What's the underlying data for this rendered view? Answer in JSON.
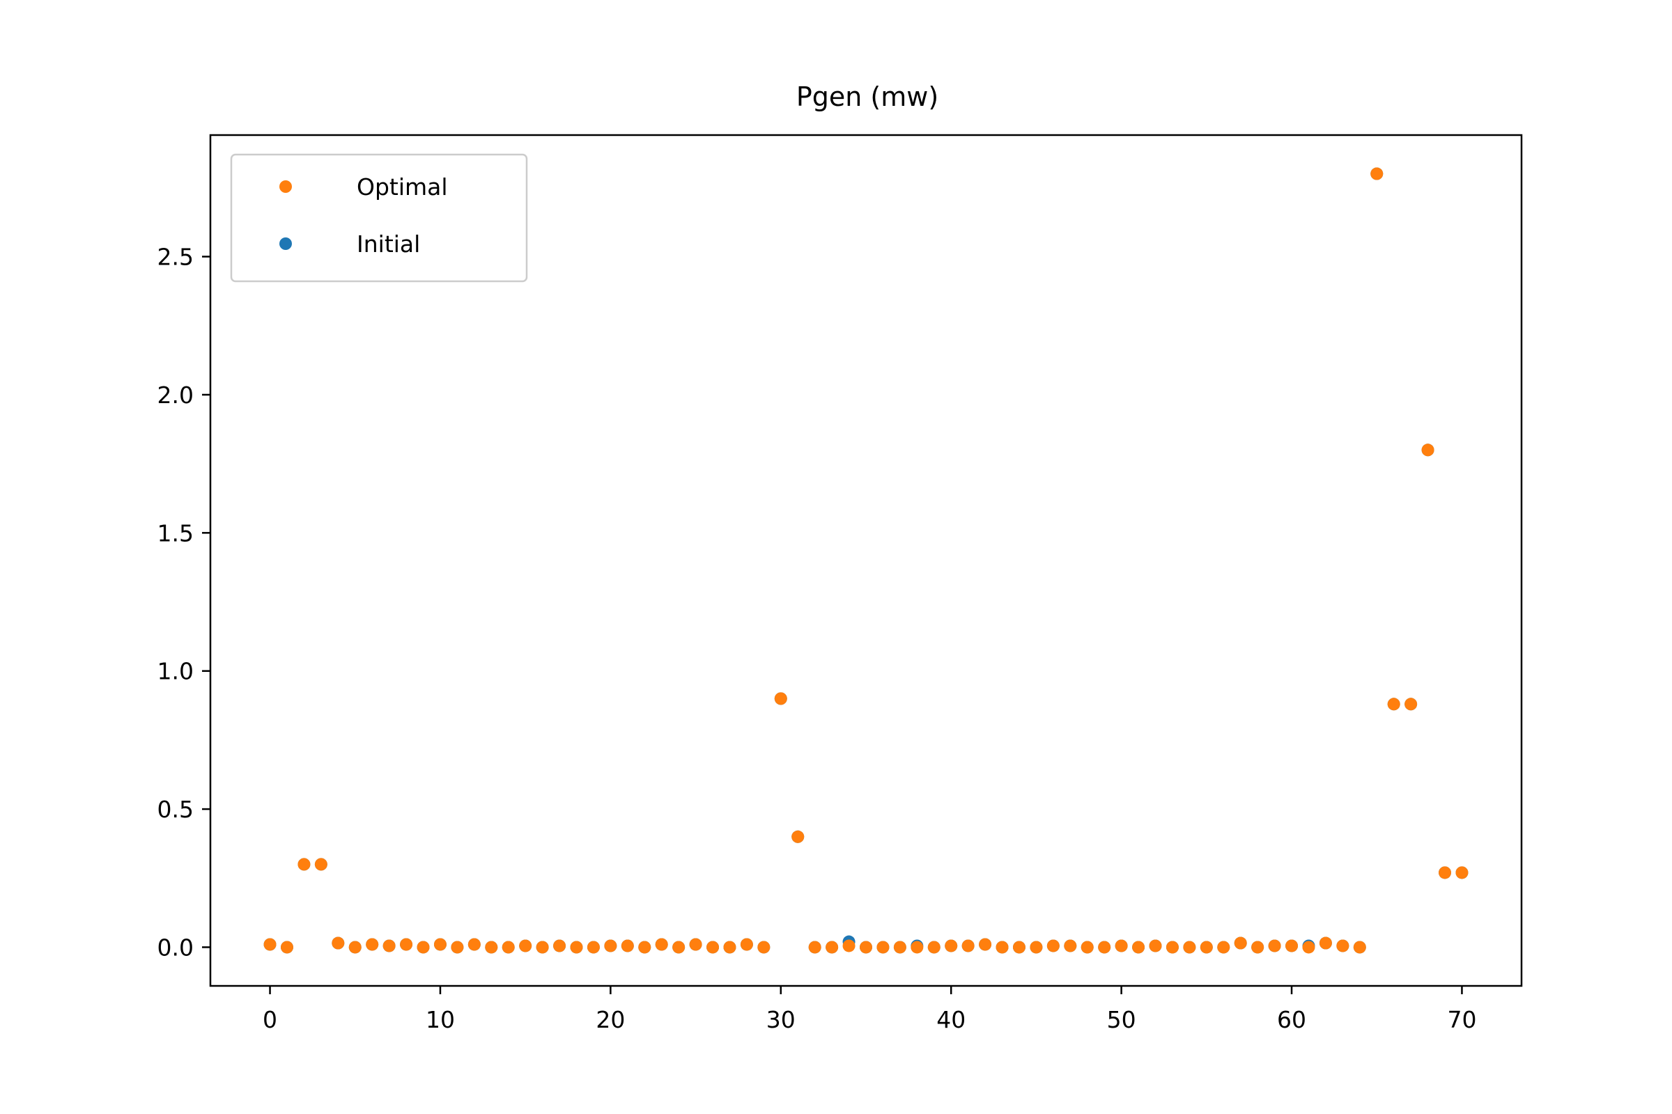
{
  "chart_data": {
    "type": "scatter",
    "title": "Pgen (mw)",
    "xlabel": "",
    "ylabel": "",
    "xlim": [
      -3.5,
      73.5
    ],
    "ylim": [
      -0.14,
      2.94
    ],
    "x_ticks": [
      0,
      10,
      20,
      30,
      40,
      50,
      60,
      70
    ],
    "x_tick_labels": [
      "0",
      "10",
      "20",
      "30",
      "40",
      "50",
      "60",
      "70"
    ],
    "y_ticks": [
      0.0,
      0.5,
      1.0,
      1.5,
      2.0,
      2.5
    ],
    "y_tick_labels": [
      "0.0",
      "0.5",
      "1.0",
      "1.5",
      "2.0",
      "2.5"
    ],
    "grid": false,
    "legend": {
      "position": "top-left",
      "entries": [
        "Optimal",
        "Initial"
      ]
    },
    "series": [
      {
        "name": "Initial",
        "color": "#1f77b4",
        "x": [
          0,
          1,
          2,
          3,
          4,
          5,
          6,
          7,
          8,
          9,
          10,
          11,
          12,
          13,
          14,
          15,
          16,
          17,
          18,
          19,
          20,
          21,
          22,
          23,
          24,
          25,
          26,
          27,
          28,
          29,
          30,
          31,
          32,
          33,
          34,
          35,
          36,
          37,
          38,
          39,
          40,
          41,
          42,
          43,
          44,
          45,
          46,
          47,
          48,
          49,
          50,
          51,
          52,
          53,
          54,
          55,
          56,
          57,
          58,
          59,
          60,
          61,
          62,
          63,
          64,
          65,
          66,
          67,
          68,
          69,
          70
        ],
        "values": [
          0.01,
          0.0,
          0.3,
          0.3,
          0.015,
          0.0,
          0.01,
          0.005,
          0.01,
          0.0,
          0.01,
          0.0,
          0.01,
          0.0,
          0.0,
          0.005,
          0.0,
          0.005,
          0.0,
          0.0,
          0.005,
          0.005,
          0.0,
          0.01,
          0.0,
          0.01,
          0.0,
          0.0,
          0.01,
          0.0,
          0.9,
          0.4,
          0.0,
          0.0,
          0.02,
          0.0,
          0.0,
          0.0,
          0.005,
          0.0,
          0.005,
          0.005,
          0.01,
          0.0,
          0.0,
          0.0,
          0.005,
          0.005,
          0.0,
          0.0,
          0.005,
          0.0,
          0.005,
          0.0,
          0.0,
          0.0,
          0.0,
          0.015,
          0.0,
          0.005,
          0.005,
          0.005,
          0.015,
          0.005,
          0.0,
          2.8,
          0.88,
          0.88,
          1.8,
          0.27,
          0.27
        ]
      },
      {
        "name": "Optimal",
        "color": "#ff7f0e",
        "x": [
          0,
          1,
          2,
          3,
          4,
          5,
          6,
          7,
          8,
          9,
          10,
          11,
          12,
          13,
          14,
          15,
          16,
          17,
          18,
          19,
          20,
          21,
          22,
          23,
          24,
          25,
          26,
          27,
          28,
          29,
          30,
          31,
          32,
          33,
          34,
          35,
          36,
          37,
          38,
          39,
          40,
          41,
          42,
          43,
          44,
          45,
          46,
          47,
          48,
          49,
          50,
          51,
          52,
          53,
          54,
          55,
          56,
          57,
          58,
          59,
          60,
          61,
          62,
          63,
          64,
          65,
          66,
          67,
          68,
          69,
          70
        ],
        "values": [
          0.01,
          0.0,
          0.3,
          0.3,
          0.015,
          0.0,
          0.01,
          0.005,
          0.01,
          0.0,
          0.01,
          0.0,
          0.01,
          0.0,
          0.0,
          0.005,
          0.0,
          0.005,
          0.0,
          0.0,
          0.005,
          0.005,
          0.0,
          0.01,
          0.0,
          0.01,
          0.0,
          0.0,
          0.01,
          0.0,
          0.9,
          0.4,
          0.0,
          0.0,
          0.005,
          0.0,
          0.0,
          0.0,
          0.0,
          0.0,
          0.005,
          0.005,
          0.01,
          0.0,
          0.0,
          0.0,
          0.005,
          0.005,
          0.0,
          0.0,
          0.005,
          0.0,
          0.005,
          0.0,
          0.0,
          0.0,
          0.0,
          0.015,
          0.0,
          0.005,
          0.005,
          0.0,
          0.015,
          0.005,
          0.0,
          2.8,
          0.88,
          0.88,
          1.8,
          0.27,
          0.27
        ]
      }
    ]
  }
}
